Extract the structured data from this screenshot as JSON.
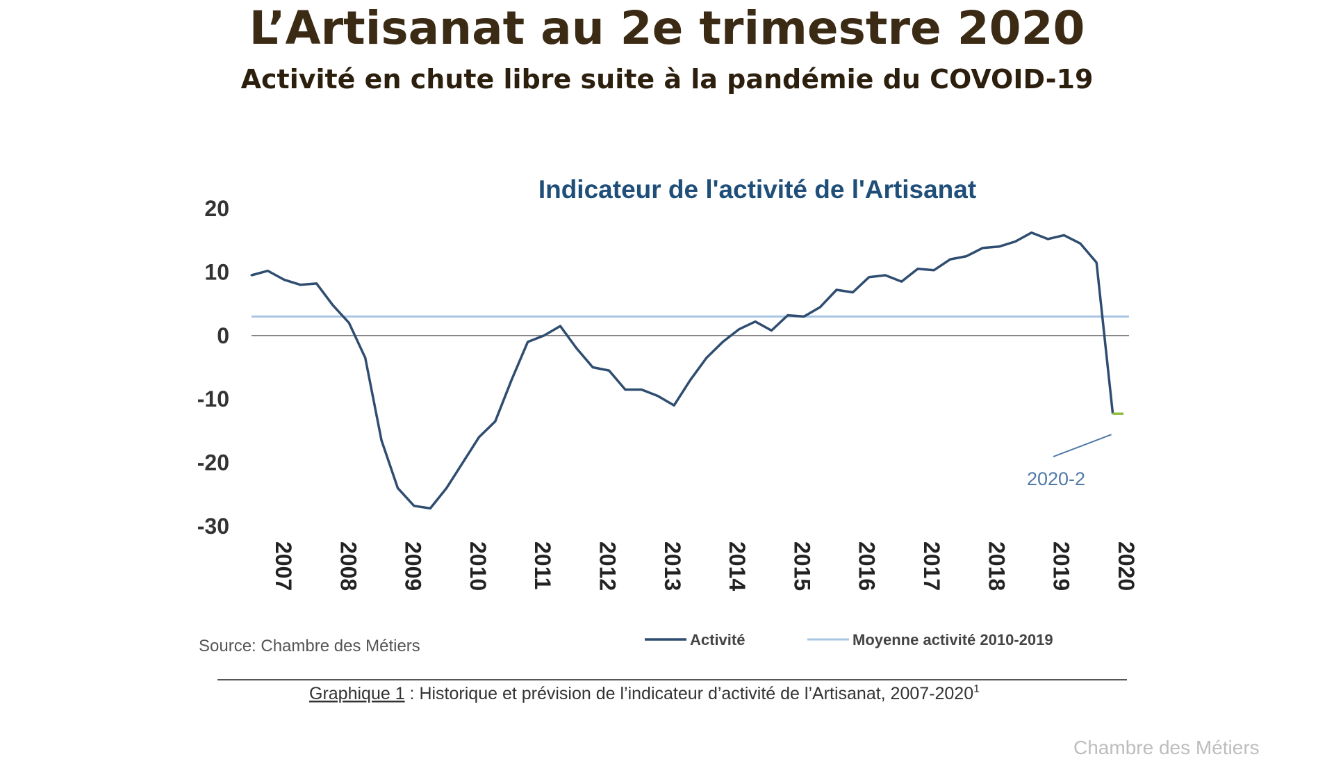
{
  "page": {
    "title": "L’Artisanat au 2e trimestre 2020",
    "subtitle": "Activité en chute libre suite à la pandémie du COVOID-19",
    "credit": "Chambre des Métiers"
  },
  "chart_data": {
    "type": "line",
    "title": "Indicateur de l'activité de l'Artisanat",
    "xlabel": "",
    "ylabel": "",
    "ylim": [
      -30,
      20
    ],
    "yticks": [
      "20",
      "10",
      "0",
      "-10",
      "-20",
      "-30"
    ],
    "xticks": [
      "2007",
      "2008",
      "2009",
      "2010",
      "2011",
      "2012",
      "2013",
      "2014",
      "2015",
      "2016",
      "2017",
      "2018",
      "2019",
      "2020"
    ],
    "x_unit": "year (quarterly points)",
    "series": [
      {
        "name": "Activité",
        "color": "#2f4d70",
        "x": [
          2007.0,
          2007.25,
          2007.5,
          2007.75,
          2008.0,
          2008.25,
          2008.5,
          2008.75,
          2009.0,
          2009.25,
          2009.5,
          2009.75,
          2010.0,
          2010.25,
          2010.5,
          2010.75,
          2011.0,
          2011.25,
          2011.5,
          2011.75,
          2012.0,
          2012.25,
          2012.5,
          2012.75,
          2013.0,
          2013.25,
          2013.5,
          2013.75,
          2014.0,
          2014.25,
          2014.5,
          2014.75,
          2015.0,
          2015.25,
          2015.5,
          2015.75,
          2016.0,
          2016.25,
          2016.5,
          2016.75,
          2017.0,
          2017.25,
          2017.5,
          2017.75,
          2018.0,
          2018.25,
          2018.5,
          2018.75,
          2019.0,
          2019.25,
          2019.5,
          2019.75,
          2020.0
        ],
        "y": [
          9.5,
          10.2,
          8.8,
          8.0,
          8.2,
          4.8,
          2.0,
          -3.5,
          -16.5,
          -24.0,
          -26.8,
          -27.2,
          -24.0,
          -20.0,
          -16.0,
          -13.5,
          -7.0,
          -1.0,
          0.0,
          1.5,
          -2.0,
          -5.0,
          -5.5,
          -8.5,
          -8.5,
          -9.5,
          -11.0,
          -7.0,
          -3.5,
          -1.0,
          1.0,
          2.2,
          0.8,
          3.2,
          3.0,
          4.5,
          7.2,
          6.8,
          9.2,
          9.5,
          8.5,
          10.5,
          10.3,
          12.0,
          12.5,
          13.8,
          14.0,
          14.8,
          16.2,
          15.2,
          15.8,
          14.5,
          11.5
        ]
      },
      {
        "name": "Activité (2020-2)",
        "legend": false,
        "color": "#8fbf3f",
        "x": [
          2020.0,
          2020.25,
          2020.5
        ],
        "y": [
          11.5,
          -12.3,
          -12.3
        ]
      },
      {
        "name": "Moyenne activité 2010-2019",
        "color": "#a8c6e3",
        "type": "hline",
        "y": 3.0
      }
    ],
    "reference_line_y": 0,
    "grid": false,
    "legend": {
      "placement": "bottom",
      "items": [
        "Activité",
        "Moyenne activité 2010-2019"
      ]
    },
    "annotations": [
      {
        "text": "2020-2",
        "x": 2020.25,
        "y": -12.3
      }
    ],
    "source": "Source: Chambre des Métiers",
    "caption": {
      "label": "Graphique 1",
      "text": " : Historique et prévision de l’indicateur d’activité de l’Artisanat, 2007-2020",
      "footnote_mark": "1"
    }
  }
}
